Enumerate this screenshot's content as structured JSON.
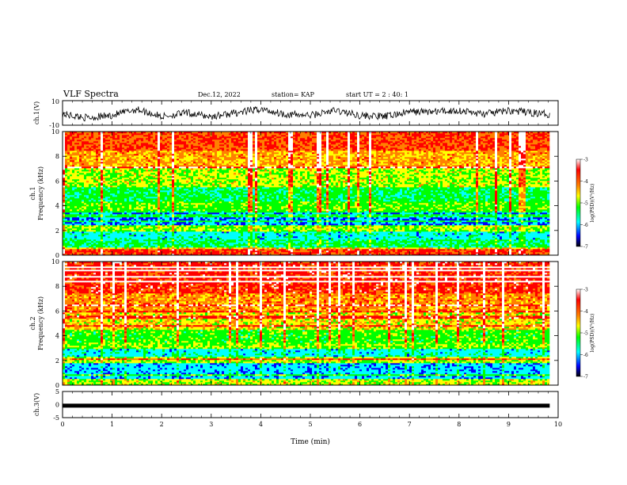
{
  "header": {
    "title": "VLF Spectra",
    "date": "Dec.12, 2022",
    "station": "station= KAP",
    "start": "start UT = 2 : 40: 1"
  },
  "colors": {
    "palette": [
      "#000080",
      "#0000ff",
      "#00ffff",
      "#00ff00",
      "#ffff00",
      "#ff8000",
      "#ff0000",
      "#ffffff"
    ],
    "waveform": "#000000"
  },
  "chart_data": [
    {
      "type": "line",
      "ylabel": "ch.1(V)",
      "ylim": [
        -10,
        10
      ],
      "yticks": [
        "10",
        "-10"
      ],
      "x_range": [
        0,
        9.83
      ],
      "description_values": {
        "x": [
          0,
          0.5,
          1.0,
          1.5,
          2.0,
          2.5,
          3.0,
          3.5,
          4.0,
          4.5,
          5.0,
          5.5,
          6.0,
          6.5,
          7.0,
          7.5,
          8.0,
          8.5,
          9.0,
          9.5,
          9.8
        ],
        "y": [
          -1,
          -4,
          -2,
          3,
          -3,
          0,
          -3,
          0,
          3,
          -1,
          -2,
          2,
          -2,
          -3,
          1,
          1,
          2,
          -1,
          2,
          0,
          -1
        ]
      }
    },
    {
      "type": "heatmap",
      "ylabel": "ch.1\nFrequency (kHz)",
      "ylim": [
        0,
        10
      ],
      "yticks": [
        "0",
        "2",
        "4",
        "6",
        "8",
        "10"
      ],
      "xlim": [
        0,
        10
      ],
      "colorbar": {
        "label": "log(PSD)(V²/Hz)",
        "range": [
          -7,
          -3
        ],
        "ticks": [
          "-3",
          "-4",
          "-5",
          "-6",
          "-7"
        ]
      },
      "band_levels": [
        {
          "freq": [
            0,
            0.5
          ],
          "log_psd": -3.5
        },
        {
          "freq": [
            0.5,
            1.3
          ],
          "log_psd": -5.2
        },
        {
          "freq": [
            1.3,
            2.0
          ],
          "log_psd": -5.6
        },
        {
          "freq": [
            2.0,
            2.5
          ],
          "log_psd": -4.6
        },
        {
          "freq": [
            2.5,
            3.6
          ],
          "log_psd": -6.0
        },
        {
          "freq": [
            3.6,
            4.3
          ],
          "log_psd": -4.8
        },
        {
          "freq": [
            4.3,
            5.5
          ],
          "log_psd": -5.1
        },
        {
          "freq": [
            5.5,
            7.0
          ],
          "log_psd": -4.5
        },
        {
          "freq": [
            7.0,
            8.5
          ],
          "log_psd": -4.0
        },
        {
          "freq": [
            8.5,
            10
          ],
          "log_psd": -3.6
        }
      ]
    },
    {
      "type": "heatmap",
      "ylabel": "ch.2\nFrequency (kHz)",
      "ylim": [
        0,
        10
      ],
      "yticks": [
        "0",
        "2",
        "4",
        "6",
        "8",
        "10"
      ],
      "xlim": [
        0,
        10
      ],
      "colorbar": {
        "label": "log(PSD)(V²/Hz)",
        "range": [
          -7,
          -3
        ],
        "ticks": [
          "-3",
          "-4",
          "-5",
          "-6",
          "-7"
        ]
      },
      "band_levels": [
        {
          "freq": [
            0,
            0.5
          ],
          "log_psd": -4.5
        },
        {
          "freq": [
            0.5,
            1.8
          ],
          "log_psd": -5.8
        },
        {
          "freq": [
            1.8,
            2.3
          ],
          "log_psd": -4.6
        },
        {
          "freq": [
            2.3,
            3.4
          ],
          "log_psd": -5.6
        },
        {
          "freq": [
            3.4,
            4.5
          ],
          "log_psd": -4.9
        },
        {
          "freq": [
            4.5,
            6.0
          ],
          "log_psd": -4.3
        },
        {
          "freq": [
            6.0,
            7.5
          ],
          "log_psd": -3.9
        },
        {
          "freq": [
            7.5,
            10
          ],
          "log_psd": -3.4
        }
      ]
    },
    {
      "type": "line",
      "ylabel": "ch.3(V)",
      "ylim": [
        -5,
        5
      ],
      "yticks": [
        "5",
        "0",
        "-5"
      ],
      "x": [
        0,
        9.83
      ],
      "y": [
        -0.4,
        -0.4
      ],
      "xlabel": "Time (min)",
      "xticks": [
        "0",
        "1",
        "2",
        "3",
        "4",
        "5",
        "6",
        "7",
        "8",
        "9",
        "10"
      ],
      "xlim": [
        0,
        10
      ]
    }
  ]
}
